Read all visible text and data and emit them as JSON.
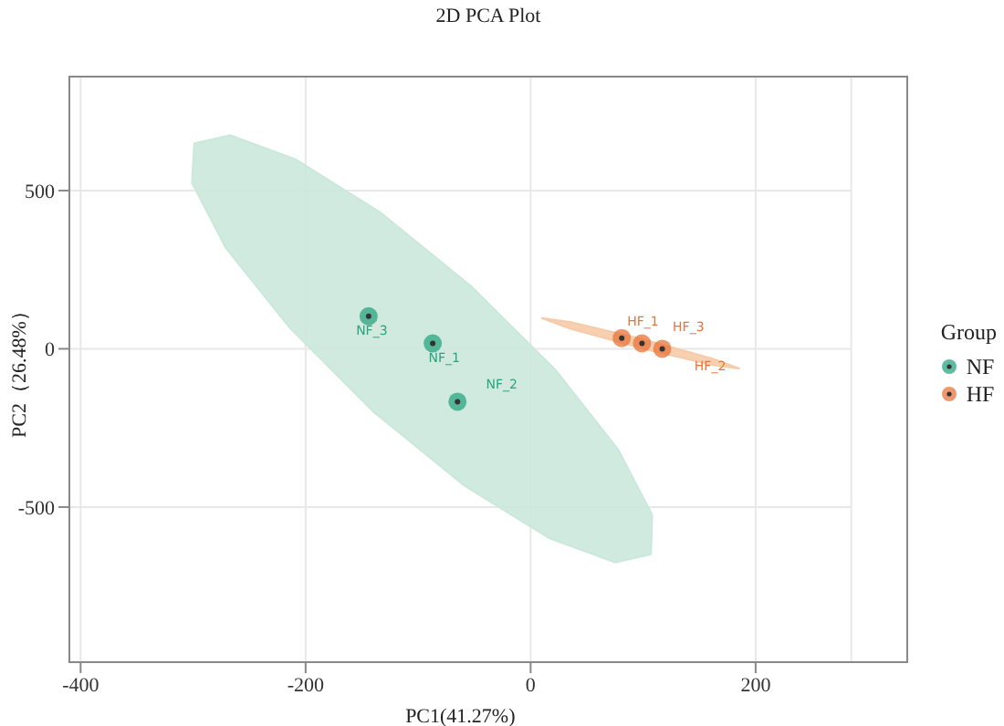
{
  "chart_data": {
    "type": "scatter",
    "title": "2D PCA Plot",
    "xlabel": "PC1(41.27%)",
    "ylabel": "PC2（26.48%）",
    "legend_title": "Group",
    "xlim": [
      -410,
      285
    ],
    "ylim": [
      -990,
      860
    ],
    "xticks": [
      -400,
      -200,
      0,
      200
    ],
    "yticks": [
      -500,
      0,
      500
    ],
    "grid": true,
    "legend": "right",
    "marker": "circle",
    "series": [
      {
        "type": "area",
        "marker": "none",
        "color": "#cbe8dd",
        "x": [
          107,
          75,
          17,
          -59,
          -140,
          -214,
          -271,
          -301,
          -299,
          -267,
          -209,
          -134,
          -53,
          22,
          78,
          108,
          107
        ],
        "values": [
          -649,
          -675,
          -599,
          -432,
          -198,
          66,
          319,
          524,
          649,
          675,
          599,
          432,
          198,
          -66,
          -319,
          -524,
          -649
        ]
      },
      {
        "type": "area",
        "marker": "none",
        "color": "#f6cba9",
        "x": [
          186,
          160,
          97,
          35,
          10,
          36,
          99,
          161,
          186
        ],
        "values": [
          -63,
          -50,
          3,
          64,
          97,
          84,
          31,
          -30,
          -63
        ]
      },
      {
        "name": "NF",
        "color": "#2aa47f",
        "x": [
          -87,
          -65,
          -144
        ],
        "values": [
          17,
          -167,
          103
        ]
      },
      {
        "name": "HF",
        "color": "#e8743b",
        "x": [
          81,
          117,
          99
        ],
        "values": [
          34,
          0,
          17
        ]
      }
    ],
    "annotations": [
      {
        "text": "NF_1",
        "x": -87,
        "y": 17
      },
      {
        "text": "NF_2",
        "x": -65,
        "y": -167
      },
      {
        "text": "NF_3",
        "x": -144,
        "y": 103
      },
      {
        "text": "HF_1",
        "x": 81,
        "y": 34
      },
      {
        "text": "HF_2",
        "x": 117,
        "y": 0
      },
      {
        "text": "HF_3",
        "x": 99,
        "y": 17
      }
    ]
  }
}
